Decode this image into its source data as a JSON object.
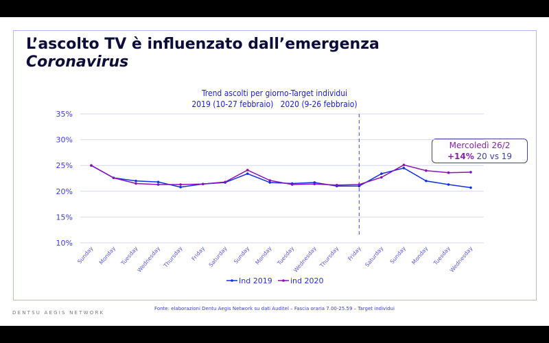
{
  "title_line1": "L’ascolto TV è influenzato dall’emergenza",
  "title_line2": "Coronavirus",
  "brand": "DENTSU AEGIS NETWORK",
  "source": "Fonte: elaborazioni Dentu Aegis Network su dati Auditel – Fascia oraria 7.00-25.59 – Target individui",
  "callout": {
    "line1": "Mercoledì 26/2",
    "bold": "+14%",
    "rest": " 20 vs 19"
  },
  "chart_data": {
    "type": "line",
    "title": "Trend ascolti per giorno-Target individui",
    "subtitle": "2019 (10-27 febbraio)   2020 (9-26 febbraio)",
    "categories": [
      "Sunday",
      "Monday",
      "Tuesday",
      "Wednesday",
      "Thursday",
      "Friday",
      "Saturday",
      "Sunday",
      "Monday",
      "Tuesday",
      "Wednesday",
      "Thursday",
      "Friday",
      "Saturday",
      "Sunday",
      "Monday",
      "Tuesday",
      "Wednesday"
    ],
    "yticks": [
      "10%",
      "15%",
      "20%",
      "25%",
      "30%",
      "35%"
    ],
    "ylim": [
      10,
      35
    ],
    "grid": true,
    "legend_position": "bottom",
    "marker_line_category_index": 12,
    "series": [
      {
        "name": "Ind 2019",
        "color": "#1030e0",
        "values": [
          25.0,
          22.6,
          22.0,
          21.8,
          20.8,
          21.4,
          21.7,
          23.4,
          21.7,
          21.5,
          21.7,
          21.0,
          21.0,
          23.4,
          24.5,
          22.0,
          21.3,
          20.7
        ]
      },
      {
        "name": "ind 2020",
        "color": "#8a10b8",
        "values": [
          25.0,
          22.6,
          21.5,
          21.3,
          21.3,
          21.4,
          21.8,
          24.1,
          22.1,
          21.3,
          21.4,
          21.2,
          21.3,
          22.7,
          25.1,
          24.0,
          23.6,
          23.7
        ]
      }
    ]
  }
}
